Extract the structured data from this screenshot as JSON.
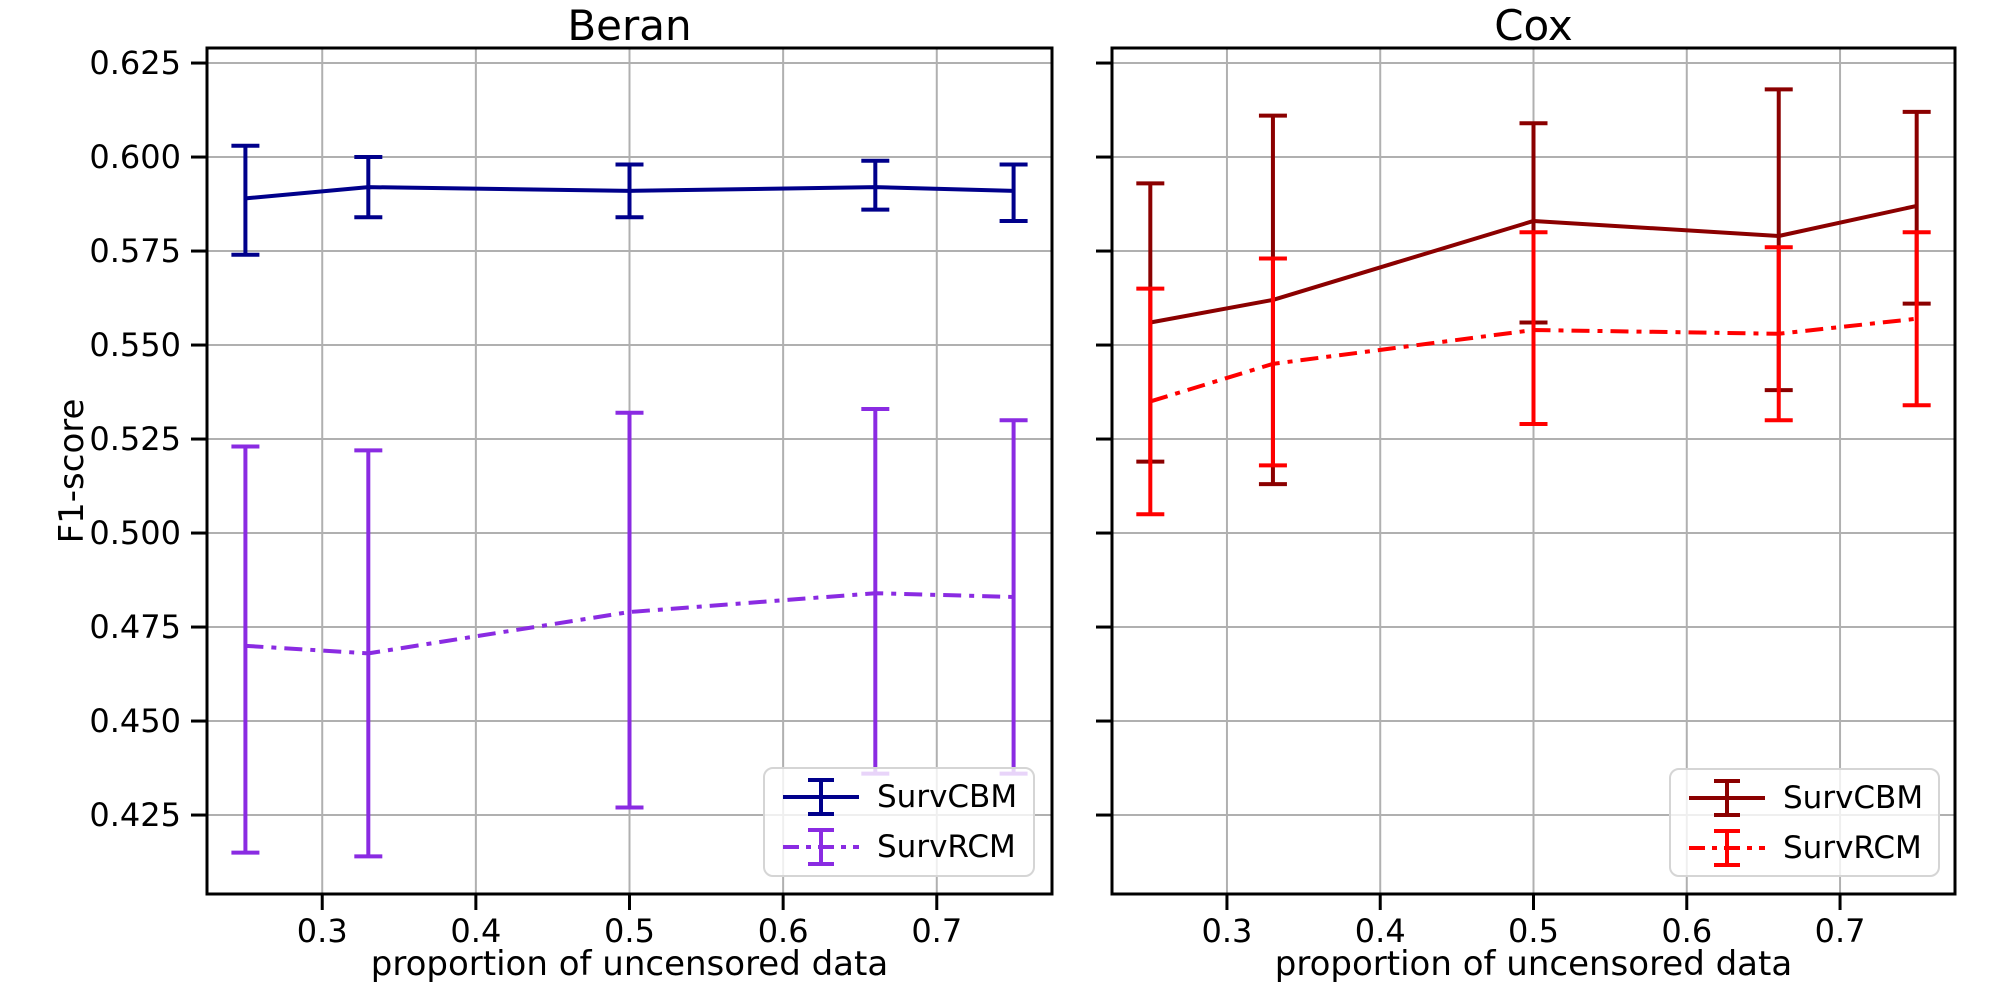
{
  "figure": {
    "background": "#ffffff",
    "grid_color": "#b0b0b0",
    "spine_color": "#000000"
  },
  "chart_data": [
    {
      "type": "line",
      "title": "Beran",
      "xlabel": "proportion of uncensored data",
      "ylabel": "F1-score",
      "xlim": [
        0.225,
        0.775
      ],
      "ylim": [
        0.404,
        0.629
      ],
      "grid": true,
      "legend_position": "lower right",
      "xticklabels": [
        "0.3",
        "0.4",
        "0.5",
        "0.6",
        "0.7"
      ],
      "yticklabels": [
        "0.425",
        "0.450",
        "0.475",
        "0.500",
        "0.525",
        "0.550",
        "0.575",
        "0.600",
        "0.625"
      ],
      "show_ytick_labels": true,
      "x": [
        0.25,
        0.33,
        0.5,
        0.66,
        0.75
      ],
      "series": [
        {
          "name": "SurvCBM",
          "color": "#00008b",
          "linestyle": "solid",
          "values": [
            0.589,
            0.592,
            0.591,
            0.592,
            0.591
          ],
          "err_high": [
            0.603,
            0.6,
            0.598,
            0.599,
            0.598
          ],
          "err_low": [
            0.574,
            0.584,
            0.584,
            0.586,
            0.583
          ]
        },
        {
          "name": "SurvRCM",
          "color": "#8a2be2",
          "linestyle": "dashdot",
          "values": [
            0.47,
            0.468,
            0.479,
            0.484,
            0.483
          ],
          "err_high": [
            0.523,
            0.522,
            0.532,
            0.533,
            0.53
          ],
          "err_low": [
            0.415,
            0.414,
            0.427,
            0.436,
            0.436
          ]
        }
      ]
    },
    {
      "type": "line",
      "title": "Cox",
      "xlabel": "proportion of uncensored data",
      "ylabel": "",
      "xlim": [
        0.225,
        0.775
      ],
      "ylim": [
        0.404,
        0.629
      ],
      "grid": true,
      "legend_position": "lower right",
      "xticklabels": [
        "0.3",
        "0.4",
        "0.5",
        "0.6",
        "0.7"
      ],
      "yticklabels": [
        "0.425",
        "0.450",
        "0.475",
        "0.500",
        "0.525",
        "0.550",
        "0.575",
        "0.600",
        "0.625"
      ],
      "show_ytick_labels": false,
      "x": [
        0.25,
        0.33,
        0.5,
        0.66,
        0.75
      ],
      "series": [
        {
          "name": "SurvCBM",
          "color": "#8b0000",
          "linestyle": "solid",
          "values": [
            0.556,
            0.562,
            0.583,
            0.579,
            0.587
          ],
          "err_high": [
            0.593,
            0.611,
            0.609,
            0.618,
            0.612
          ],
          "err_low": [
            0.519,
            0.513,
            0.556,
            0.538,
            0.561
          ]
        },
        {
          "name": "SurvRCM",
          "color": "#ff0000",
          "linestyle": "dashdot",
          "values": [
            0.535,
            0.545,
            0.554,
            0.553,
            0.557
          ],
          "err_high": [
            0.565,
            0.573,
            0.58,
            0.576,
            0.58
          ],
          "err_low": [
            0.505,
            0.518,
            0.529,
            0.53,
            0.534
          ]
        }
      ]
    }
  ]
}
